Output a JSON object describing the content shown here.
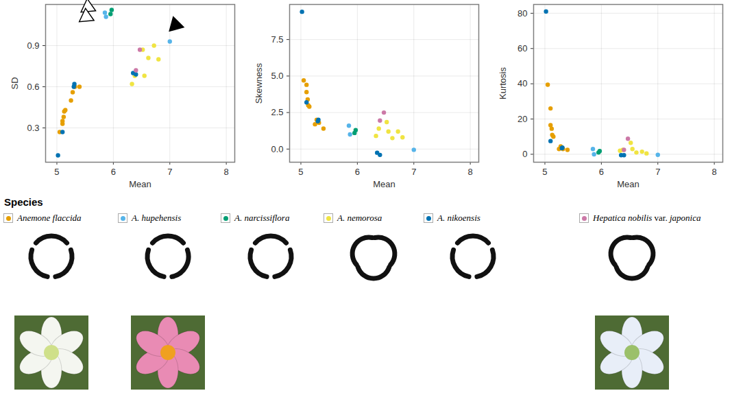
{
  "chart_data": [
    {
      "type": "scatter",
      "x_label": "Mean",
      "y_label": "SD",
      "xlim": [
        4.8,
        8.15
      ],
      "xticks": [
        5,
        6,
        7,
        8
      ],
      "ylim": [
        0.05,
        1.2
      ],
      "yticks": [
        0.3,
        0.6,
        0.9
      ],
      "grid": true,
      "series": [
        {
          "name": "Anemone flaccida",
          "color": "#E69F00",
          "x": [
            5.05,
            5.1,
            5.1,
            5.12,
            5.13,
            5.15,
            5.25,
            5.28,
            5.32,
            5.4
          ],
          "values": [
            0.27,
            0.33,
            0.35,
            0.38,
            0.42,
            0.43,
            0.5,
            0.56,
            0.6,
            0.6
          ]
        },
        {
          "name": "A. hupehensis",
          "color": "#56B4E9",
          "x": [
            5.85,
            5.87,
            7.0
          ],
          "values": [
            1.14,
            1.11,
            0.93
          ]
        },
        {
          "name": "A. narcissiflora",
          "color": "#009E73",
          "x": [
            5.95,
            5.97
          ],
          "values": [
            1.13,
            1.16
          ]
        },
        {
          "name": "A. nemorosa",
          "color": "#F0E442",
          "x": [
            6.33,
            6.38,
            6.52,
            6.55,
            6.62,
            6.72,
            6.8
          ],
          "values": [
            0.62,
            0.68,
            0.87,
            0.68,
            0.81,
            0.9,
            0.8
          ]
        },
        {
          "name": "A. nikoensis",
          "color": "#0072B2",
          "x": [
            5.02,
            5.1,
            5.3,
            5.31,
            6.35,
            6.4
          ],
          "values": [
            0.1,
            0.27,
            0.6,
            0.62,
            0.7,
            0.69
          ]
        },
        {
          "name": "Hepatica nobilis var. japonica",
          "color": "#CC79A7",
          "x": [
            6.4,
            6.47
          ],
          "values": [
            0.72,
            0.87
          ]
        }
      ],
      "annotations": [
        {
          "x": 5.55,
          "y": 1.18,
          "marker": "open"
        },
        {
          "x": 5.52,
          "y": 1.11,
          "marker": "open"
        },
        {
          "x": 7.1,
          "y": 1.05,
          "marker": "filled"
        }
      ]
    },
    {
      "type": "scatter",
      "x_label": "Mean",
      "y_label": "Skewness",
      "xlim": [
        4.8,
        8.15
      ],
      "xticks": [
        5,
        6,
        7,
        8
      ],
      "ylim": [
        -0.9,
        9.9
      ],
      "yticks": [
        {
          "value": 0,
          "label": "0.0"
        },
        {
          "value": 2.5,
          "label": "2.5"
        },
        {
          "value": 5,
          "label": "5.0"
        },
        {
          "value": 7.5,
          "label": "7.5"
        }
      ],
      "grid": true,
      "series": [
        {
          "name": "Anemone flaccida",
          "color": "#E69F00",
          "x": [
            5.05,
            5.1,
            5.1,
            5.12,
            5.13,
            5.15,
            5.25,
            5.28,
            5.32,
            5.4
          ],
          "values": [
            4.7,
            4.4,
            3.9,
            3.4,
            3.0,
            2.9,
            1.7,
            2.0,
            1.8,
            1.4
          ]
        },
        {
          "name": "A. hupehensis",
          "color": "#56B4E9",
          "x": [
            5.85,
            5.87,
            7.0
          ],
          "values": [
            1.6,
            1.0,
            -0.05
          ]
        },
        {
          "name": "A. narcissiflora",
          "color": "#009E73",
          "x": [
            5.95,
            5.97
          ],
          "values": [
            1.1,
            1.3
          ]
        },
        {
          "name": "A. nemorosa",
          "color": "#F0E442",
          "x": [
            6.33,
            6.38,
            6.52,
            6.55,
            6.62,
            6.72,
            6.8
          ],
          "values": [
            0.9,
            1.4,
            1.85,
            1.2,
            0.75,
            1.2,
            0.8
          ]
        },
        {
          "name": "A. nikoensis",
          "color": "#0072B2",
          "x": [
            5.02,
            5.1,
            5.3,
            5.31,
            6.35,
            6.4
          ],
          "values": [
            9.4,
            3.2,
            1.9,
            2.0,
            -0.25,
            -0.4
          ]
        },
        {
          "name": "Hepatica nobilis var. japonica",
          "color": "#CC79A7",
          "x": [
            6.4,
            6.47
          ],
          "values": [
            1.95,
            2.5
          ]
        }
      ]
    },
    {
      "type": "scatter",
      "x_label": "Mean",
      "y_label": "Kurtosis",
      "xlim": [
        4.8,
        8.15
      ],
      "xticks": [
        5,
        6,
        7,
        8
      ],
      "ylim": [
        -4.5,
        85
      ],
      "yticks": [
        0,
        20,
        40,
        60,
        80
      ],
      "grid": true,
      "series": [
        {
          "name": "Anemone flaccida",
          "color": "#E69F00",
          "x": [
            5.05,
            5.1,
            5.1,
            5.12,
            5.13,
            5.15,
            5.25,
            5.28,
            5.32,
            5.4
          ],
          "values": [
            39.5,
            26,
            16.5,
            14.5,
            11,
            10,
            3,
            4.5,
            3,
            2.5
          ]
        },
        {
          "name": "A. hupehensis",
          "color": "#56B4E9",
          "x": [
            5.85,
            5.87,
            7.0
          ],
          "values": [
            3,
            0,
            -0.3
          ]
        },
        {
          "name": "A. narcissiflora",
          "color": "#009E73",
          "x": [
            5.95,
            5.97
          ],
          "values": [
            1,
            1.8
          ]
        },
        {
          "name": "A. nemorosa",
          "color": "#F0E442",
          "x": [
            6.33,
            6.38,
            6.52,
            6.55,
            6.62,
            6.72,
            6.8
          ],
          "values": [
            2,
            2.5,
            6.5,
            3,
            1,
            1.5,
            0.5
          ]
        },
        {
          "name": "A. nikoensis",
          "color": "#0072B2",
          "x": [
            5.02,
            5.1,
            5.3,
            5.31,
            6.35,
            6.4
          ],
          "values": [
            81,
            7.5,
            3.5,
            3.8,
            -0.5,
            -0.5
          ]
        },
        {
          "name": "Hepatica nobilis var. japonica",
          "color": "#CC79A7",
          "x": [
            6.4,
            6.47
          ],
          "values": [
            2.5,
            8.8
          ]
        }
      ]
    }
  ],
  "legend": {
    "title": "Species",
    "position": "bottom"
  }
}
